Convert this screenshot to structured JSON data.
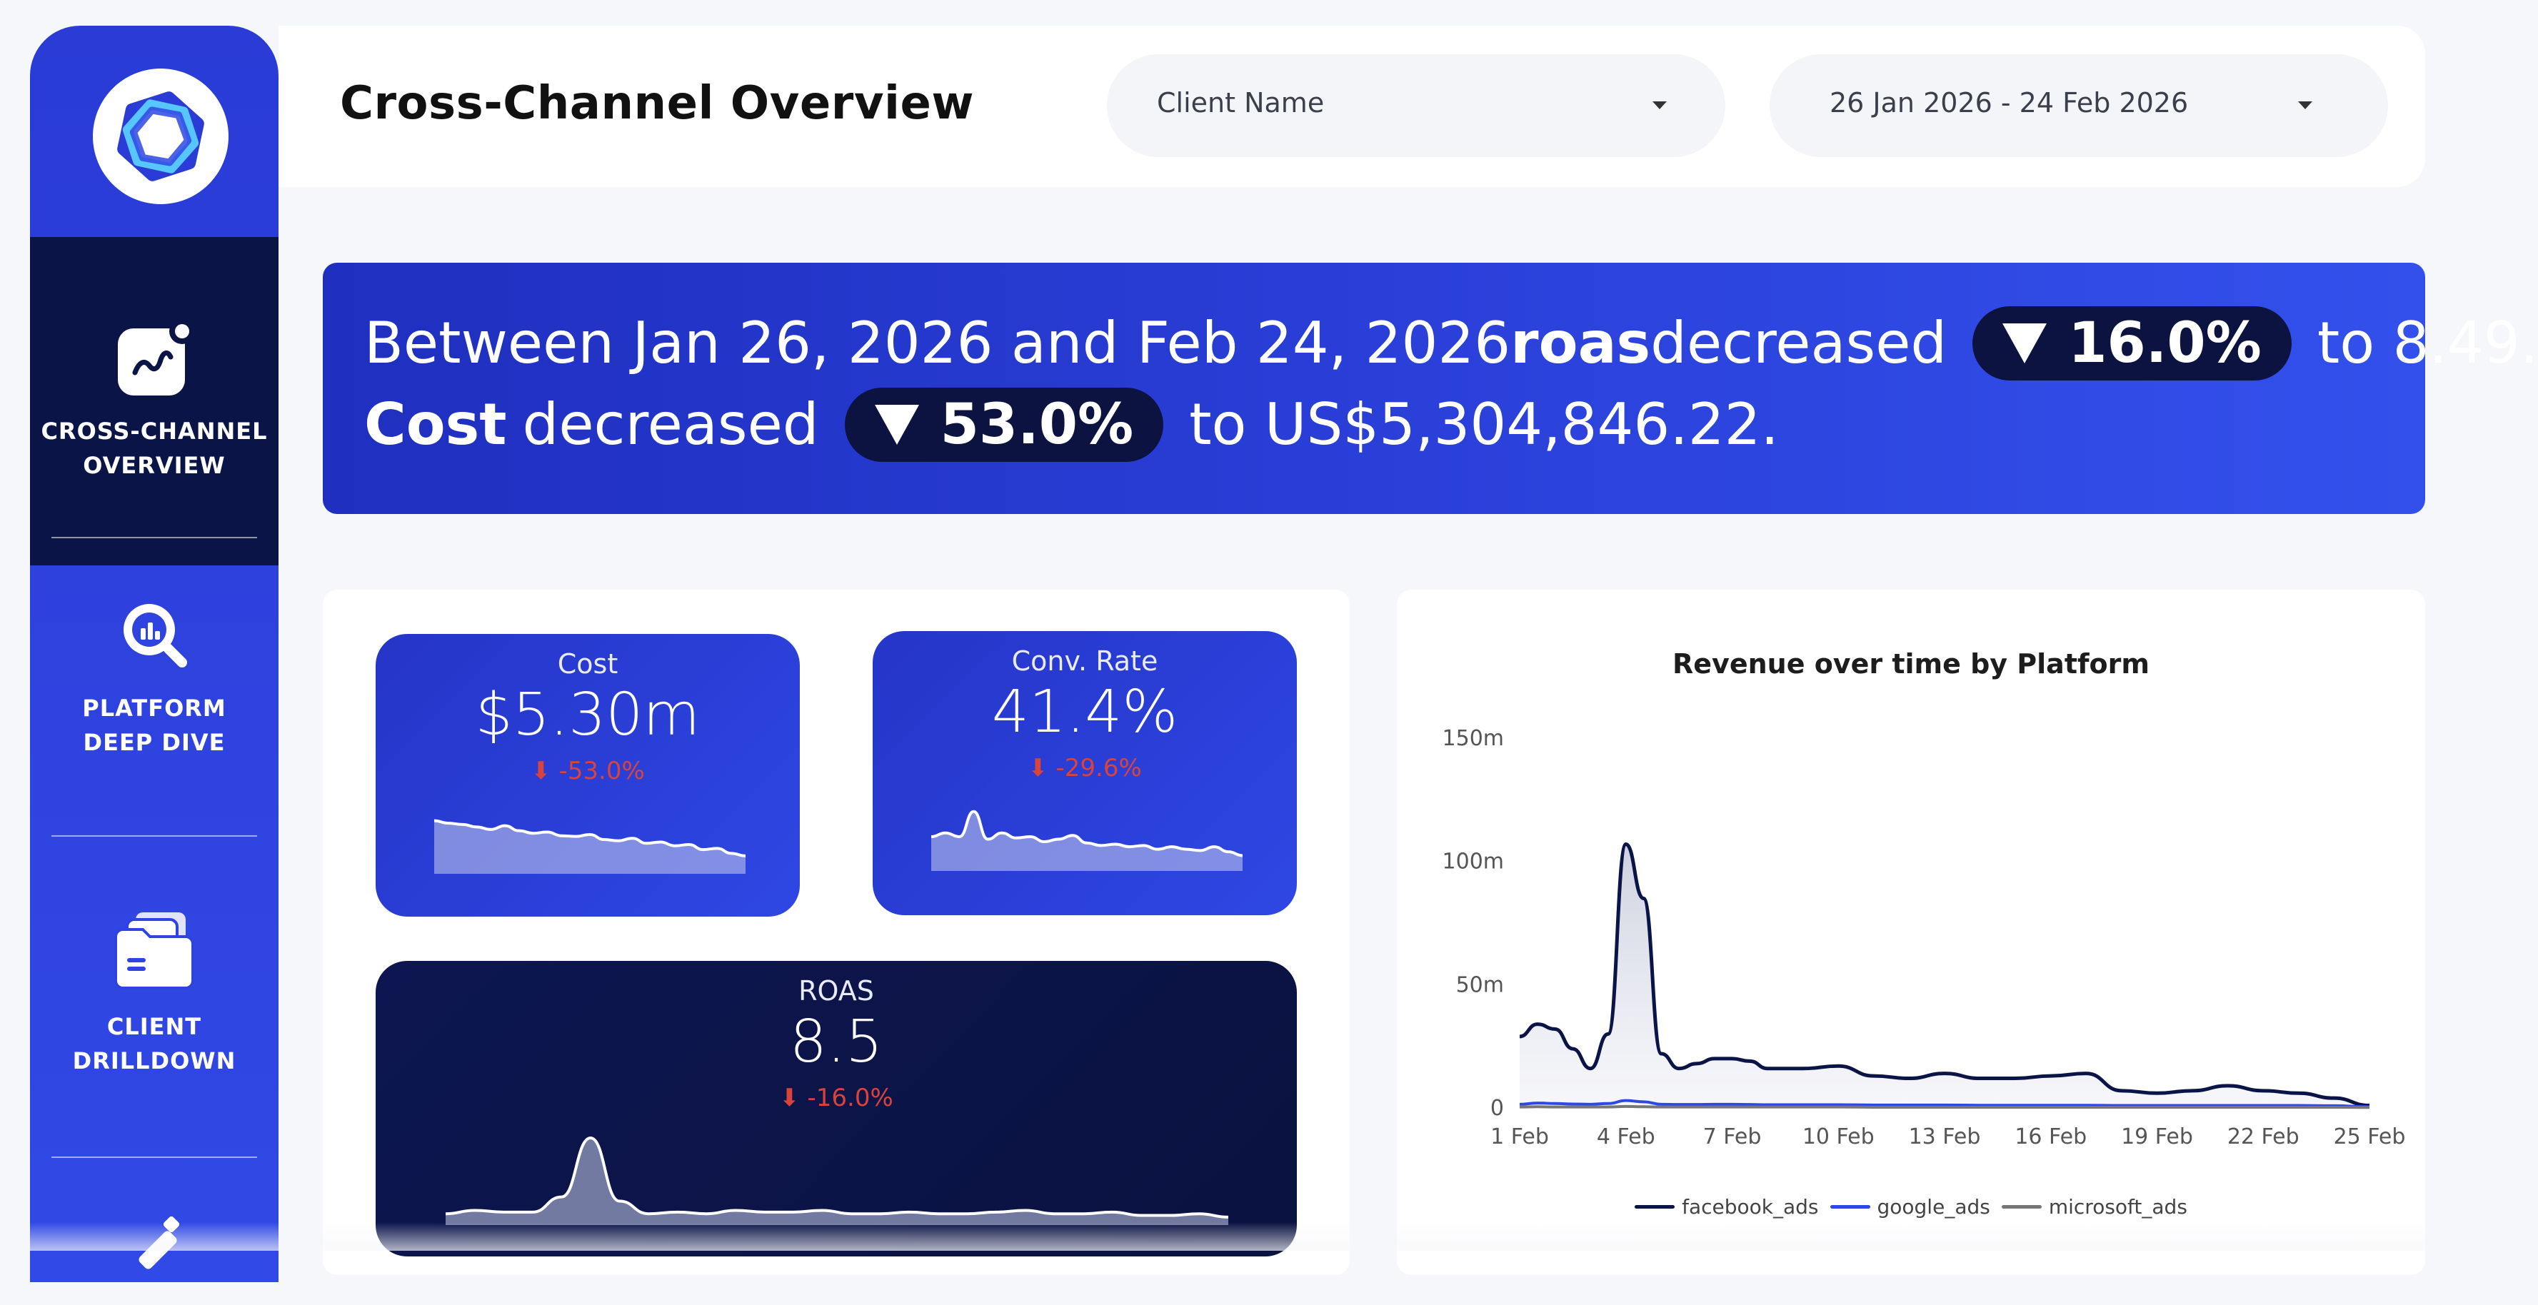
{
  "sidebar": {
    "items": [
      {
        "label": "CROSS-CHANNEL\nOVERVIEW",
        "icon": "chart-trend-icon",
        "active": true
      },
      {
        "label": "PLATFORM\nDEEP DIVE",
        "icon": "magnifier-chart-icon",
        "active": false
      },
      {
        "label": "CLIENT\nDRILLDOWN",
        "icon": "folders-icon",
        "active": false
      },
      {
        "label": "",
        "icon": "edit-tool-icon",
        "active": false
      }
    ]
  },
  "header": {
    "title": "Cross-Channel Overview",
    "client_dropdown": "Client Name",
    "date_dropdown": "26 Jan 2026 - 24 Feb 2026"
  },
  "banner": {
    "line1_prefix": "Between Jan 26, 2026 and Feb 24, 2026",
    "metric1": "roas",
    "verb1": "decreased",
    "delta1": "16.0%",
    "line1_suffix": "to 8.49.",
    "metric2": "Cost",
    "verb2": "decreased",
    "delta2": "53.0%",
    "line2_suffix": "to US$5,304,846.22."
  },
  "kpis": {
    "cost": {
      "label": "Cost",
      "value": "$5.30m",
      "delta": "⬇ -53.0%"
    },
    "conv_rate": {
      "label": "Conv. Rate",
      "value": "41.4%",
      "delta": "⬇ -29.6%"
    },
    "roas": {
      "label": "ROAS",
      "value": "8.5",
      "delta": "⬇ -16.0%"
    }
  },
  "chart_data": {
    "type": "area",
    "title": "Revenue over time by Platform",
    "xlabel": "",
    "ylabel": "",
    "x_ticks": [
      "1 Feb",
      "4 Feb",
      "7 Feb",
      "10 Feb",
      "13 Feb",
      "16 Feb",
      "19 Feb",
      "22 Feb",
      "25 Feb"
    ],
    "y_ticks": [
      "0",
      "50m",
      "100m",
      "150m"
    ],
    "ylim": [
      0,
      150
    ],
    "y_unit": "m",
    "x": [
      1,
      1.5,
      2,
      2.5,
      3,
      3.5,
      4,
      4.5,
      5,
      5.5,
      6,
      6.5,
      7,
      7.5,
      8,
      9,
      10,
      11,
      12,
      13,
      14,
      15,
      16,
      17,
      18,
      19,
      20,
      21,
      22,
      23,
      24,
      25
    ],
    "series": [
      {
        "name": "facebook_ads",
        "color": "#0b1447",
        "values": [
          29,
          34,
          32,
          24,
          16,
          30,
          107,
          85,
          22,
          16,
          18,
          20,
          20,
          19,
          16,
          16,
          17,
          13,
          12,
          14,
          12,
          12,
          13,
          14,
          7,
          6,
          7,
          9,
          7,
          6,
          4,
          1
        ]
      },
      {
        "name": "google_ads",
        "color": "#2f47e4",
        "values": [
          1.5,
          2,
          1.8,
          1.6,
          1.5,
          1.8,
          3,
          2.5,
          1.5,
          1.4,
          1.4,
          1.5,
          1.5,
          1.4,
          1.3,
          1.3,
          1.3,
          1.2,
          1.2,
          1.2,
          1.1,
          1.1,
          1.1,
          1.1,
          1,
          1,
          1,
          1,
          1,
          1,
          0.9,
          0.5
        ]
      },
      {
        "name": "microsoft_ads",
        "color": "#777777",
        "values": [
          0.4,
          0.5,
          0.4,
          0.4,
          0.4,
          0.4,
          0.6,
          0.5,
          0.4,
          0.4,
          0.4,
          0.4,
          0.4,
          0.4,
          0.4,
          0.4,
          0.4,
          0.3,
          0.3,
          0.3,
          0.3,
          0.3,
          0.3,
          0.3,
          0.3,
          0.3,
          0.3,
          0.3,
          0.3,
          0.3,
          0.3,
          0.2
        ]
      }
    ],
    "legend": "bottom-center",
    "grid": false
  },
  "sparklines": {
    "cost": [
      0.8,
      0.76,
      0.74,
      0.7,
      0.66,
      0.72,
      0.64,
      0.6,
      0.62,
      0.56,
      0.55,
      0.58,
      0.5,
      0.48,
      0.52,
      0.44,
      0.46,
      0.4,
      0.42,
      0.34,
      0.36,
      0.28,
      0.24
    ],
    "conv_rate": [
      0.5,
      0.56,
      0.5,
      0.9,
      0.46,
      0.56,
      0.48,
      0.5,
      0.42,
      0.46,
      0.52,
      0.4,
      0.36,
      0.38,
      0.34,
      0.36,
      0.3,
      0.34,
      0.3,
      0.28,
      0.34,
      0.26,
      0.2
    ],
    "roas": [
      0.1,
      0.14,
      0.12,
      0.12,
      0.3,
      1.0,
      0.25,
      0.1,
      0.12,
      0.1,
      0.14,
      0.12,
      0.12,
      0.14,
      0.1,
      0.1,
      0.12,
      0.1,
      0.1,
      0.12,
      0.14,
      0.1,
      0.1,
      0.12,
      0.08,
      0.08,
      0.1,
      0.06
    ]
  }
}
